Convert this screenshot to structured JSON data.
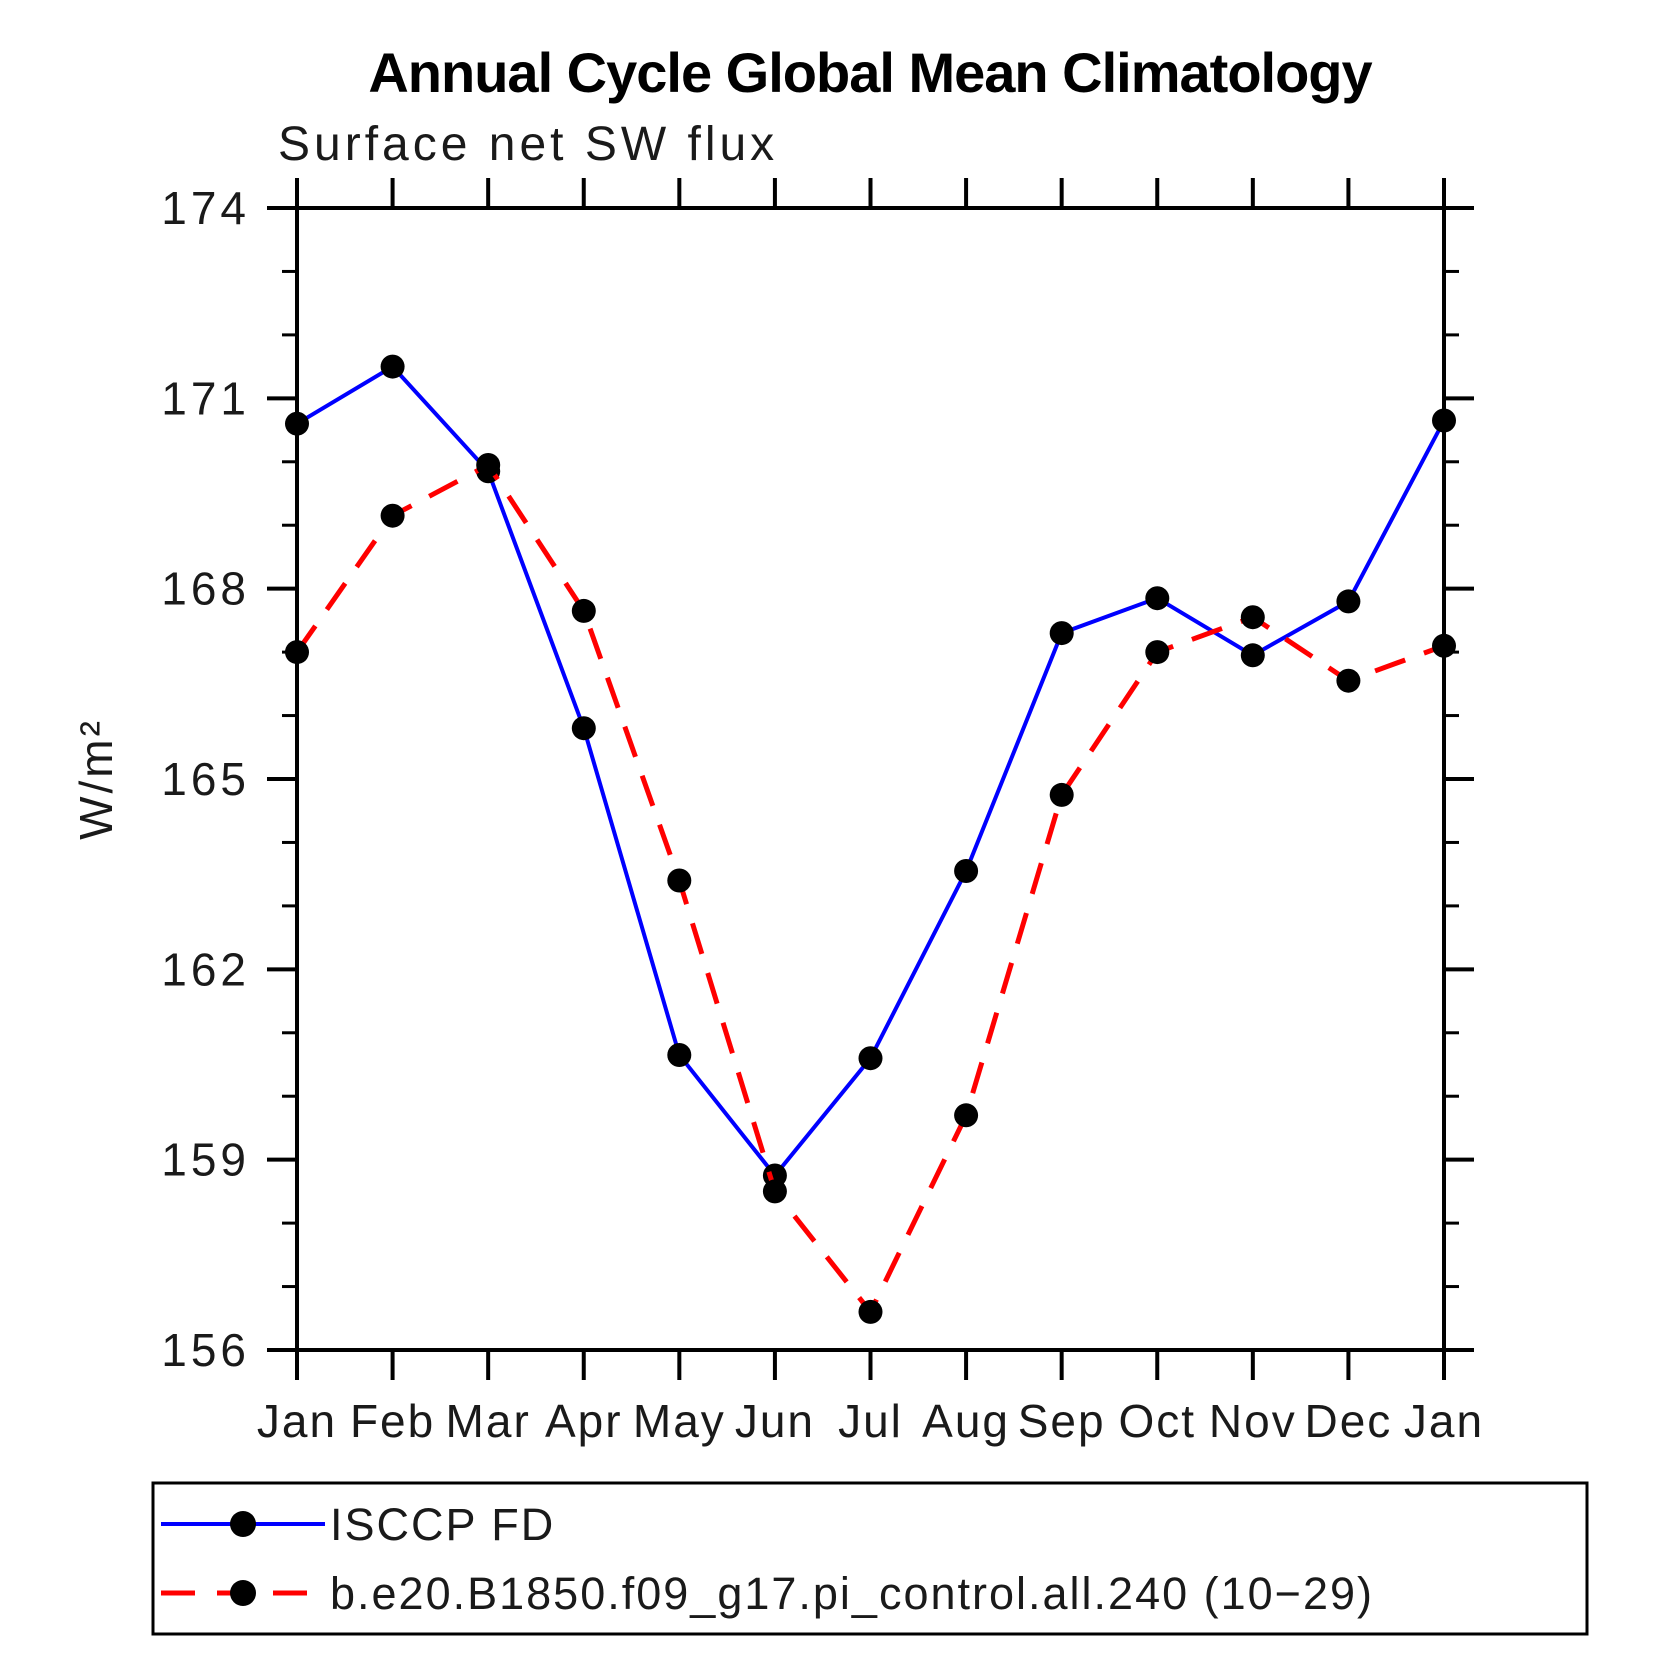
{
  "header": {
    "title": "Annual Cycle Global Mean Climatology",
    "subtitle": "Surface net SW flux"
  },
  "axes": {
    "ylabel": "W/m²",
    "ytick_labels": [
      "156",
      "159",
      "162",
      "165",
      "168",
      "171",
      "174"
    ],
    "month_labels": [
      "Jan",
      "Feb",
      "Mar",
      "Apr",
      "May",
      "Jun",
      "Jul",
      "Aug",
      "Sep",
      "Oct",
      "Nov",
      "Dec",
      "Jan"
    ]
  },
  "colors": {
    "background": "#ffffff",
    "frame": "#000000",
    "text": "#1a1a1a",
    "series_obs": "#0000ff",
    "series_model": "#ff0000",
    "marker": "#000000"
  },
  "chart_data": {
    "type": "line",
    "title": "Annual Cycle Global Mean Climatology",
    "subtitle": "Surface net SW flux",
    "ylabel": "W/m²",
    "xlabel": "",
    "categories": [
      "Jan",
      "Feb",
      "Mar",
      "Apr",
      "May",
      "Jun",
      "Jul",
      "Aug",
      "Sep",
      "Oct",
      "Nov",
      "Dec",
      "Jan"
    ],
    "ylim": [
      156,
      174
    ],
    "ytick_major_step": 3,
    "ytick_minor_step": 1,
    "grid": false,
    "legend_position": "bottom-left-box",
    "series": [
      {
        "name": "ISCCP FD",
        "color": "#0000ff",
        "line_style": "solid",
        "marker": "circle",
        "marker_color": "#000000",
        "values": [
          170.6,
          171.5,
          169.85,
          165.8,
          160.65,
          158.75,
          160.6,
          163.55,
          167.3,
          167.85,
          166.95,
          167.8,
          170.65
        ]
      },
      {
        "name": "b.e20.B1850.f09_g17.pi_control.all.240 (10−29)",
        "color": "#ff0000",
        "line_style": "dashed",
        "marker": "circle",
        "marker_color": "#000000",
        "values": [
          167.0,
          169.15,
          169.95,
          167.65,
          163.4,
          158.5,
          156.6,
          159.7,
          164.75,
          167.0,
          167.55,
          166.55,
          167.1
        ]
      }
    ]
  }
}
